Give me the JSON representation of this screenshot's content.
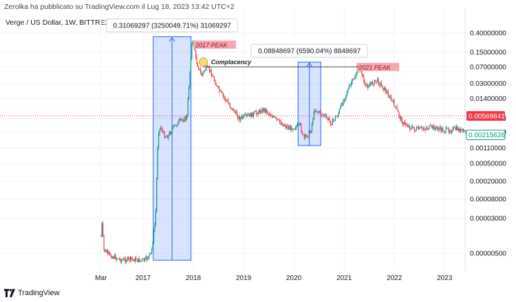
{
  "header": {
    "attribution": "Zerolka ha pubblicato su TradingView.com il Lug 18, 2023 13:42 UTC+2",
    "symbol": "Verge / US Dollar, 1W, BITTREX"
  },
  "footer": {
    "brand": "TradingView",
    "logo_icon": "tradingview-logo-icon"
  },
  "chart_data": {
    "type": "candlestick",
    "title": "Verge / US Dollar, 1W, BITTREX",
    "scale": "log",
    "grid": true,
    "y_ticks": [
      "0.40000000",
      "0.15000000",
      "0.07000000",
      "0.03000000",
      "0.01400000",
      "0.00500000",
      "0.00250000",
      "0.00110000",
      "0.00050000",
      "0.00020000",
      "0.00008000",
      "0.00003000",
      "0.00000500"
    ],
    "x_ticks": [
      "Mar",
      "2017",
      "2018",
      "2019",
      "2020",
      "2021",
      "2022",
      "2023"
    ],
    "current_price": {
      "label": "0.00569841",
      "value": 0.00569841,
      "color": "#f23645"
    },
    "last_price": {
      "label": "0.00215626",
      "value": 0.00215626,
      "color": "#089981"
    },
    "series": [
      {
        "colors": {
          "up": "#089981",
          "down": "#f23645"
        },
        "path": [
          [
            "2016-03-01",
            1.2e-05
          ],
          [
            "2016-03-08",
            2.2e-05
          ],
          [
            "2016-03-22",
            6e-06
          ],
          [
            "2016-05-01",
            4.5e-06
          ],
          [
            "2016-06-15",
            4e-06
          ],
          [
            "2016-08-01",
            3.5e-06
          ],
          [
            "2016-10-01",
            3.7e-06
          ],
          [
            "2016-12-01",
            3.5e-06
          ],
          [
            "2017-01-15",
            3.5e-06
          ],
          [
            "2017-03-01",
            5e-06
          ],
          [
            "2017-04-01",
            3e-05
          ],
          [
            "2017-04-20",
            0.0025
          ],
          [
            "2017-05-10",
            0.0032
          ],
          [
            "2017-06-01",
            0.0021
          ],
          [
            "2017-07-01",
            0.002
          ],
          [
            "2017-08-01",
            0.003
          ],
          [
            "2017-10-01",
            0.0045
          ],
          [
            "2017-11-15",
            0.0052
          ],
          [
            "2017-12-01",
            0.03
          ],
          [
            "2017-12-20",
            0.22
          ],
          [
            "2018-01-05",
            0.25
          ],
          [
            "2018-01-20",
            0.1
          ],
          [
            "2018-03-01",
            0.045
          ],
          [
            "2018-04-01",
            0.065
          ],
          [
            "2018-05-01",
            0.06
          ],
          [
            "2018-07-01",
            0.022
          ],
          [
            "2018-09-01",
            0.012
          ],
          [
            "2018-12-01",
            0.005
          ],
          [
            "2019-03-01",
            0.006
          ],
          [
            "2019-06-01",
            0.008
          ],
          [
            "2019-09-01",
            0.0045
          ],
          [
            "2019-12-01",
            0.003
          ],
          [
            "2020-02-15",
            0.0035
          ],
          [
            "2020-03-15",
            0.0018
          ],
          [
            "2020-05-01",
            0.0025
          ],
          [
            "2020-06-01",
            0.008
          ],
          [
            "2020-08-01",
            0.006
          ],
          [
            "2020-10-01",
            0.004
          ],
          [
            "2020-11-15",
            0.006
          ],
          [
            "2021-01-15",
            0.018
          ],
          [
            "2021-04-01",
            0.05
          ],
          [
            "2021-05-01",
            0.07
          ],
          [
            "2021-06-01",
            0.025
          ],
          [
            "2021-09-01",
            0.035
          ],
          [
            "2021-11-01",
            0.02
          ],
          [
            "2022-01-01",
            0.01
          ],
          [
            "2022-03-01",
            0.004
          ],
          [
            "2022-06-01",
            0.0028
          ],
          [
            "2022-10-01",
            0.0032
          ],
          [
            "2023-01-01",
            0.0027
          ],
          [
            "2023-04-01",
            0.0029
          ],
          [
            "2023-07-15",
            0.00215626
          ]
        ]
      }
    ],
    "annotations": {
      "measures": [
        {
          "label": "0.31069297 (3250049.71%) 31069297",
          "from_date": "2017-03-15",
          "to_date": "2017-12-15",
          "low": 3.5e-06,
          "high": 0.33
        },
        {
          "label": "0.08848697 (6590.04%) 8848697",
          "from_date": "2020-02-01",
          "to_date": "2020-07-15",
          "low": 0.00125,
          "high": 0.09
        }
      ],
      "boxes": [
        {
          "label": "2017 PEAK",
          "date": "2018-01-01",
          "price": 0.22
        },
        {
          "label": "2021 PEAK",
          "date": "2021-04-01",
          "price": 0.07
        }
      ],
      "complacency": {
        "label": "Complacency",
        "date": "2018-03-15",
        "price": 0.09
      }
    }
  }
}
